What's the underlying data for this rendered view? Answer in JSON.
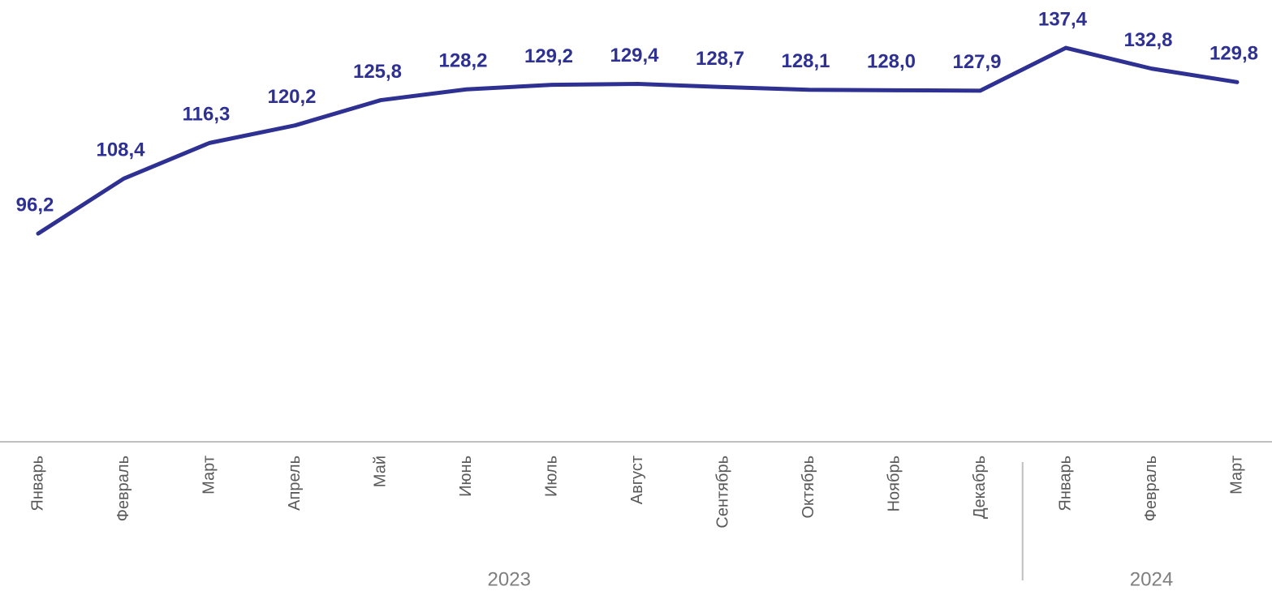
{
  "chart_data": {
    "type": "line",
    "categories": [
      "Январь",
      "Февраль",
      "Март",
      "Апрель",
      "Май",
      "Июнь",
      "Июль",
      "Август",
      "Сентябрь",
      "Октябрь",
      "Ноябрь",
      "Декабрь",
      "Январь",
      "Февраль",
      "Март"
    ],
    "groups": [
      {
        "label": "2023",
        "count": 12
      },
      {
        "label": "2024",
        "count": 3
      }
    ],
    "series": [
      {
        "color": "#2e3192",
        "values": [
          96.2,
          108.4,
          116.3,
          120.2,
          125.8,
          128.2,
          129.2,
          129.4,
          128.7,
          128.1,
          128.0,
          127.9,
          137.4,
          132.8,
          129.8
        ],
        "value_labels": [
          "96,2",
          "108,4",
          "116,3",
          "120,2",
          "125,8",
          "128,2",
          "129,2",
          "129,4",
          "128,7",
          "128,1",
          "128,0",
          "127,9",
          "137,4",
          "132,8",
          "129,8"
        ]
      }
    ],
    "ylim": [
      50,
      150
    ]
  }
}
